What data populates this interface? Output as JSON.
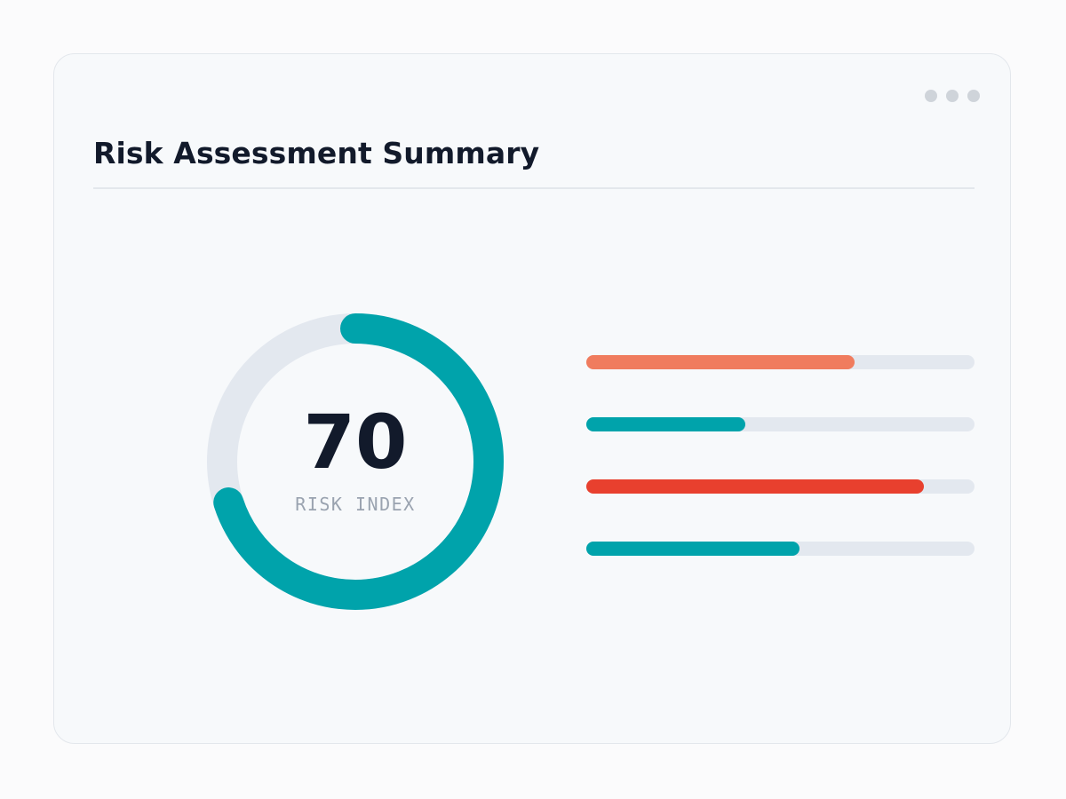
{
  "header": {
    "title": "Risk Assessment Summary"
  },
  "gauge": {
    "value": "70",
    "label": "RISK INDEX",
    "percent": 70,
    "fill_color": "#00a3ab",
    "track_color": "#e3e8ef"
  },
  "bars": [
    {
      "fraction": 0.69,
      "color": "#f07c5e"
    },
    {
      "fraction": 0.41,
      "color": "#00a3ab"
    },
    {
      "fraction": 0.87,
      "color": "#e8402e"
    },
    {
      "fraction": 0.55,
      "color": "#00a3ab"
    }
  ],
  "menu": {
    "icon": "more-horizontal-icon"
  }
}
